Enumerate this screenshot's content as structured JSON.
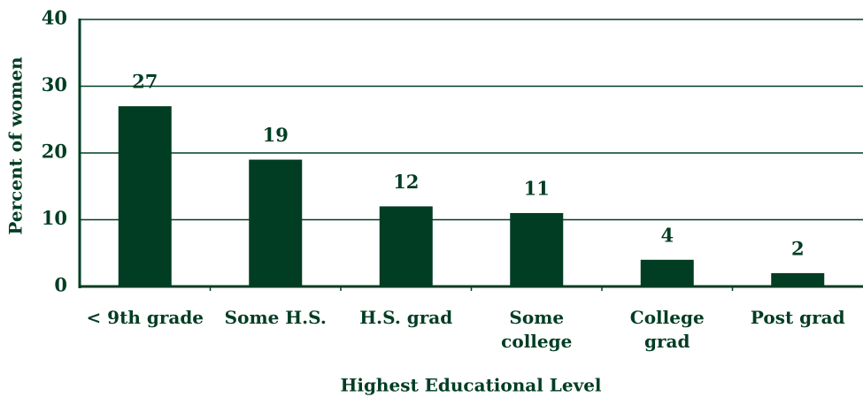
{
  "chart_data": {
    "type": "bar",
    "categories": [
      "< 9th grade",
      "Some H.S.",
      "H.S. grad",
      "Some\ncollege",
      "College\ngrad",
      "Post grad"
    ],
    "values": [
      27,
      19,
      12,
      11,
      4,
      2
    ],
    "color": "#003d23",
    "xlabel": "Highest Educational Level",
    "ylabel": "Percent of women",
    "ylim": [
      0,
      40
    ],
    "yticks": [
      0,
      10,
      20,
      30,
      40
    ],
    "grid": true
  }
}
